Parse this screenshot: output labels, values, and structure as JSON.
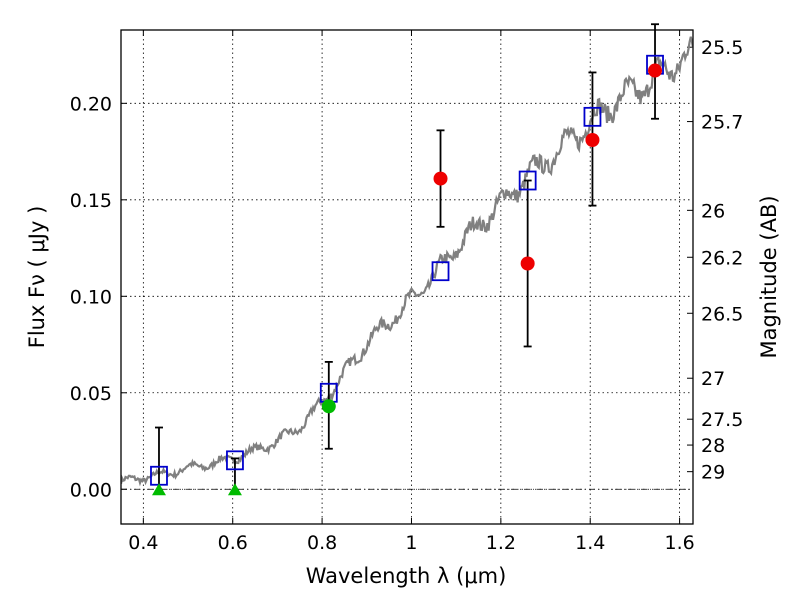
{
  "chart_data": {
    "type": "scatter",
    "xlabel": "Wavelength  λ (μm)",
    "ylabel": "Flux  Fν  ( μJy )",
    "y2label": "Magnitude (AB)",
    "xlim": [
      0.35,
      1.63
    ],
    "ylim": [
      -0.018,
      0.238
    ],
    "xticks": [
      {
        "v": 0.4,
        "label": "0.4"
      },
      {
        "v": 0.6,
        "label": "0.6"
      },
      {
        "v": 0.8,
        "label": "0.8"
      },
      {
        "v": 1.0,
        "label": "1"
      },
      {
        "v": 1.2,
        "label": "1.2"
      },
      {
        "v": 1.4,
        "label": "1.4"
      },
      {
        "v": 1.6,
        "label": "1.6"
      }
    ],
    "yticks": [
      {
        "v": 0.0,
        "label": "0.00"
      },
      {
        "v": 0.05,
        "label": "0.05"
      },
      {
        "v": 0.1,
        "label": "0.10"
      },
      {
        "v": 0.15,
        "label": "0.15"
      },
      {
        "v": 0.2,
        "label": "0.20"
      }
    ],
    "mag_ticks": [
      {
        "label": "25.5"
      },
      {
        "label": "25.7"
      },
      {
        "label": "26"
      },
      {
        "label": "26.2"
      },
      {
        "label": "26.5"
      },
      {
        "label": "27"
      },
      {
        "label": "27.5"
      },
      {
        "label": "28"
      },
      {
        "label": "29"
      }
    ],
    "sed_model": {
      "color": "#808080",
      "x": [
        0.35,
        0.4,
        0.45,
        0.5,
        0.55,
        0.6,
        0.65,
        0.7,
        0.75,
        0.8,
        0.85,
        0.9,
        0.95,
        1.0,
        1.05,
        1.1,
        1.15,
        1.2,
        1.25,
        1.3,
        1.35,
        1.4,
        1.45,
        1.5,
        1.55,
        1.6,
        1.63
      ],
      "y": [
        0.004,
        0.006,
        0.008,
        0.011,
        0.013,
        0.016,
        0.02,
        0.025,
        0.032,
        0.045,
        0.06,
        0.076,
        0.087,
        0.098,
        0.11,
        0.125,
        0.137,
        0.148,
        0.16,
        0.17,
        0.18,
        0.19,
        0.2,
        0.206,
        0.214,
        0.222,
        0.225
      ]
    },
    "model_photometry": {
      "marker": "open-square",
      "color": "#0000cc",
      "points": [
        {
          "x": 0.435,
          "y": 0.007
        },
        {
          "x": 0.605,
          "y": 0.015
        },
        {
          "x": 0.815,
          "y": 0.05
        },
        {
          "x": 1.065,
          "y": 0.113
        },
        {
          "x": 1.26,
          "y": 0.16
        },
        {
          "x": 1.405,
          "y": 0.193
        },
        {
          "x": 1.545,
          "y": 0.22
        }
      ]
    },
    "detections": {
      "marker": "filled-circle",
      "points": [
        {
          "x": 0.815,
          "y": 0.043,
          "err_low": 0.022,
          "err_high": 0.023,
          "color": "#00bb00"
        },
        {
          "x": 1.065,
          "y": 0.161,
          "err_low": 0.025,
          "err_high": 0.025,
          "color": "#ee0000"
        },
        {
          "x": 1.26,
          "y": 0.117,
          "err_low": 0.043,
          "err_high": 0.043,
          "color": "#ee0000"
        },
        {
          "x": 1.405,
          "y": 0.181,
          "err_low": 0.034,
          "err_high": 0.035,
          "color": "#ee0000"
        },
        {
          "x": 1.545,
          "y": 0.217,
          "err_low": 0.025,
          "err_high": 0.024,
          "color": "#ee0000"
        }
      ]
    },
    "upper_limits": {
      "marker": "filled-triangle",
      "color": "#00bb00",
      "points": [
        {
          "x": 0.435,
          "y": -0.001,
          "err_high": 0.033
        },
        {
          "x": 0.605,
          "y": -0.001,
          "err_high": 0.017
        }
      ]
    }
  }
}
